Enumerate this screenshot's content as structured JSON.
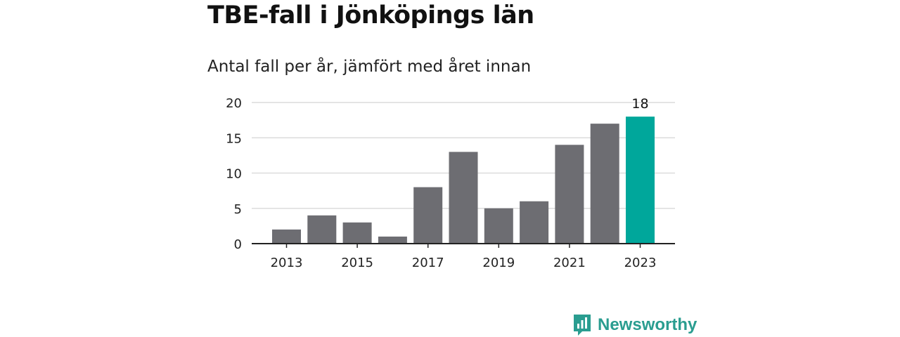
{
  "title": "TBE-fall i Jönköpings län",
  "subtitle": "Antal fall per år, jämfört med året innan",
  "brand": {
    "name": "Newsworthy",
    "icon": "newsworthy-logo-icon",
    "color": "#2a9d90"
  },
  "colors": {
    "bar": "#6d6d72",
    "highlight": "#00a79b",
    "grid": "#dcdcdc",
    "axis": "#222222"
  },
  "chart_data": {
    "type": "bar",
    "categories": [
      "2013",
      "2014",
      "2015",
      "2016",
      "2017",
      "2018",
      "2019",
      "2020",
      "2021",
      "2022",
      "2023"
    ],
    "values": [
      2,
      4,
      3,
      1,
      8,
      13,
      5,
      6,
      14,
      17,
      18
    ],
    "highlight_index": 10,
    "highlight_label": "18",
    "x_tick_labels": [
      "2013",
      "2015",
      "2017",
      "2019",
      "2021",
      "2023"
    ],
    "y_ticks": [
      0,
      5,
      10,
      15,
      20
    ],
    "ylim": [
      0,
      20
    ],
    "grid": true,
    "xlabel": "",
    "ylabel": ""
  }
}
